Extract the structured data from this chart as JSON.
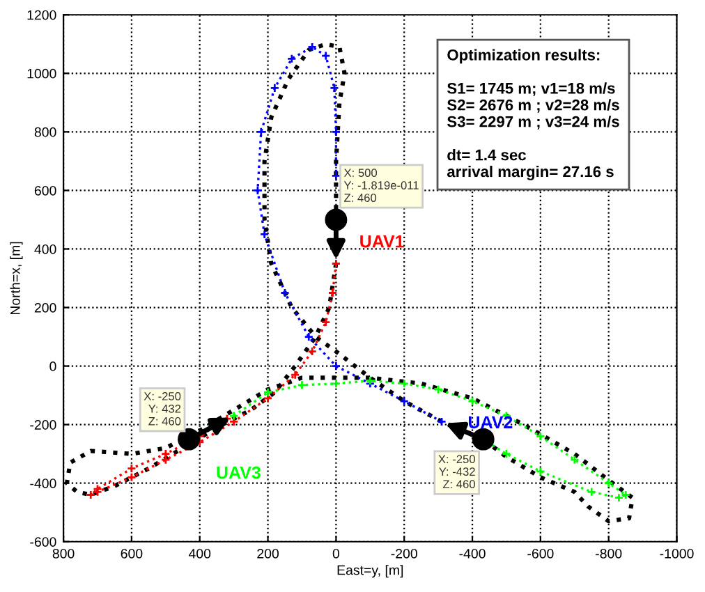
{
  "chart_data": {
    "type": "line",
    "xlabel": "East=y, [m]",
    "ylabel": "North=x, [m]",
    "xlim": [
      800,
      -1000
    ],
    "ylim": [
      -600,
      1200
    ],
    "xticks": [
      800,
      600,
      400,
      200,
      0,
      -200,
      -400,
      -600,
      -800,
      -1000
    ],
    "yticks": [
      -600,
      -400,
      -200,
      0,
      200,
      400,
      600,
      800,
      1000,
      1200
    ],
    "grid": true,
    "line_style": "dotted",
    "series": [
      {
        "name": "UAV1",
        "color": "#ff0000",
        "marker": "cross",
        "x": [
          0,
          10,
          30,
          70,
          120,
          200,
          300,
          400,
          500,
          600,
          700,
          720,
          700,
          600,
          500,
          400,
          320
        ],
        "values": [
          350,
          250,
          150,
          50,
          -30,
          -110,
          -190,
          -260,
          -320,
          -380,
          -430,
          -440,
          -420,
          -350,
          -300,
          -240,
          -180
        ]
      },
      {
        "name": "UAV2",
        "color": "#0000ff",
        "marker": "cross",
        "x": [
          -310,
          -200,
          -100,
          0,
          80,
          150,
          210,
          230,
          220,
          180,
          130,
          70,
          30,
          5,
          0,
          0
        ],
        "values": [
          -190,
          -120,
          -60,
          0,
          100,
          250,
          450,
          600,
          800,
          950,
          1050,
          1090,
          1060,
          950,
          800,
          650
        ]
      },
      {
        "name": "UAV3",
        "color": "#00ff00",
        "marker": "cross",
        "x": [
          300,
          200,
          100,
          0,
          -100,
          -200,
          -300,
          -400,
          -500,
          -600,
          -700,
          -800,
          -850,
          -830,
          -750,
          -600,
          -500,
          -432
        ],
        "values": [
          -170,
          -90,
          -65,
          -60,
          -50,
          -60,
          -80,
          -120,
          -170,
          -240,
          -320,
          -400,
          -440,
          -450,
          -430,
          -360,
          -300,
          -250
        ]
      },
      {
        "color": "#000000",
        "x": [
          -432,
          -310,
          -200,
          -100,
          0,
          60,
          130,
          190,
          210,
          210,
          190,
          140,
          80,
          30,
          -10,
          -25,
          -10,
          0,
          0,
          0
        ],
        "values": [
          -250,
          -190,
          -120,
          -40,
          50,
          100,
          200,
          350,
          500,
          700,
          850,
          980,
          1080,
          1100,
          1090,
          1000,
          900,
          700,
          600,
          520
        ]
      },
      {
        "color": "#000000",
        "x": [
          0,
          20,
          60,
          120,
          180,
          250,
          350,
          450,
          550,
          650,
          720,
          760,
          790,
          780,
          720,
          600,
          500,
          400,
          300,
          200,
          100,
          0,
          -100,
          -250,
          -400,
          -550,
          -700,
          -800,
          -870,
          -860,
          -800,
          -740,
          -700,
          -600,
          -500,
          -432
        ],
        "values": [
          350,
          200,
          100,
          0,
          -90,
          -150,
          -210,
          -280,
          -350,
          -410,
          -440,
          -430,
          -400,
          -330,
          -290,
          -300,
          -280,
          -220,
          -150,
          -80,
          -40,
          -40,
          -40,
          -60,
          -110,
          -200,
          -300,
          -390,
          -450,
          -520,
          -530,
          -480,
          -430,
          -380,
          -310,
          -250
        ]
      },
      {
        "type": "scatter",
        "color": "#000000",
        "marker": "circle",
        "x": [
          0,
          -432,
          432
        ],
        "values": [
          500,
          -250,
          -250
        ]
      }
    ],
    "annotations": [
      "Optimization results:\n\nS1= 1745 m; v1=18 m/s\nS2= 2676 m ; v2=28 m/s\nS3= 2297 m ; v3=24 m/s\n\ndt= 1.4 sec\narrival margin= 27.16 s",
      {
        "text": "X: 500\nY: -1.819e-011\nZ: 460",
        "x": 0,
        "y": 500
      },
      {
        "text": "X: -250\nY: 432\nZ: 460",
        "x": 432,
        "y": -250
      },
      {
        "text": "X: -250\nY: -432\nZ: 460",
        "x": -432,
        "y": -250
      }
    ]
  }
}
